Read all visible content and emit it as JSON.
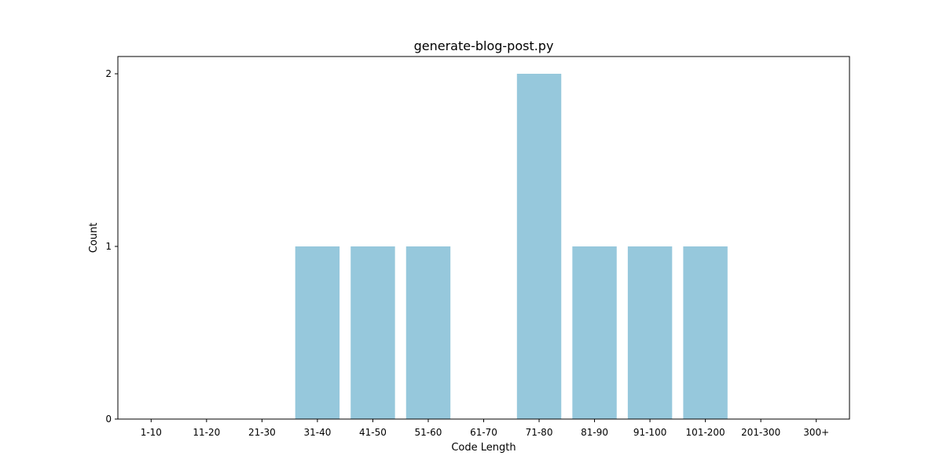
{
  "chart_data": {
    "type": "bar",
    "title": "generate-blog-post.py",
    "xlabel": "Code Length",
    "ylabel": "Count",
    "categories": [
      "1-10",
      "11-20",
      "21-30",
      "31-40",
      "41-50",
      "51-60",
      "61-70",
      "71-80",
      "81-90",
      "91-100",
      "101-200",
      "201-300",
      "300+"
    ],
    "values": [
      0,
      0,
      0,
      1,
      1,
      1,
      0,
      2,
      1,
      1,
      1,
      0,
      0
    ],
    "ylim": [
      0,
      2.1
    ],
    "yticks": [
      "0",
      "1",
      "2"
    ],
    "grid": false,
    "legend": "none",
    "bar_color": "#96c8dc"
  }
}
